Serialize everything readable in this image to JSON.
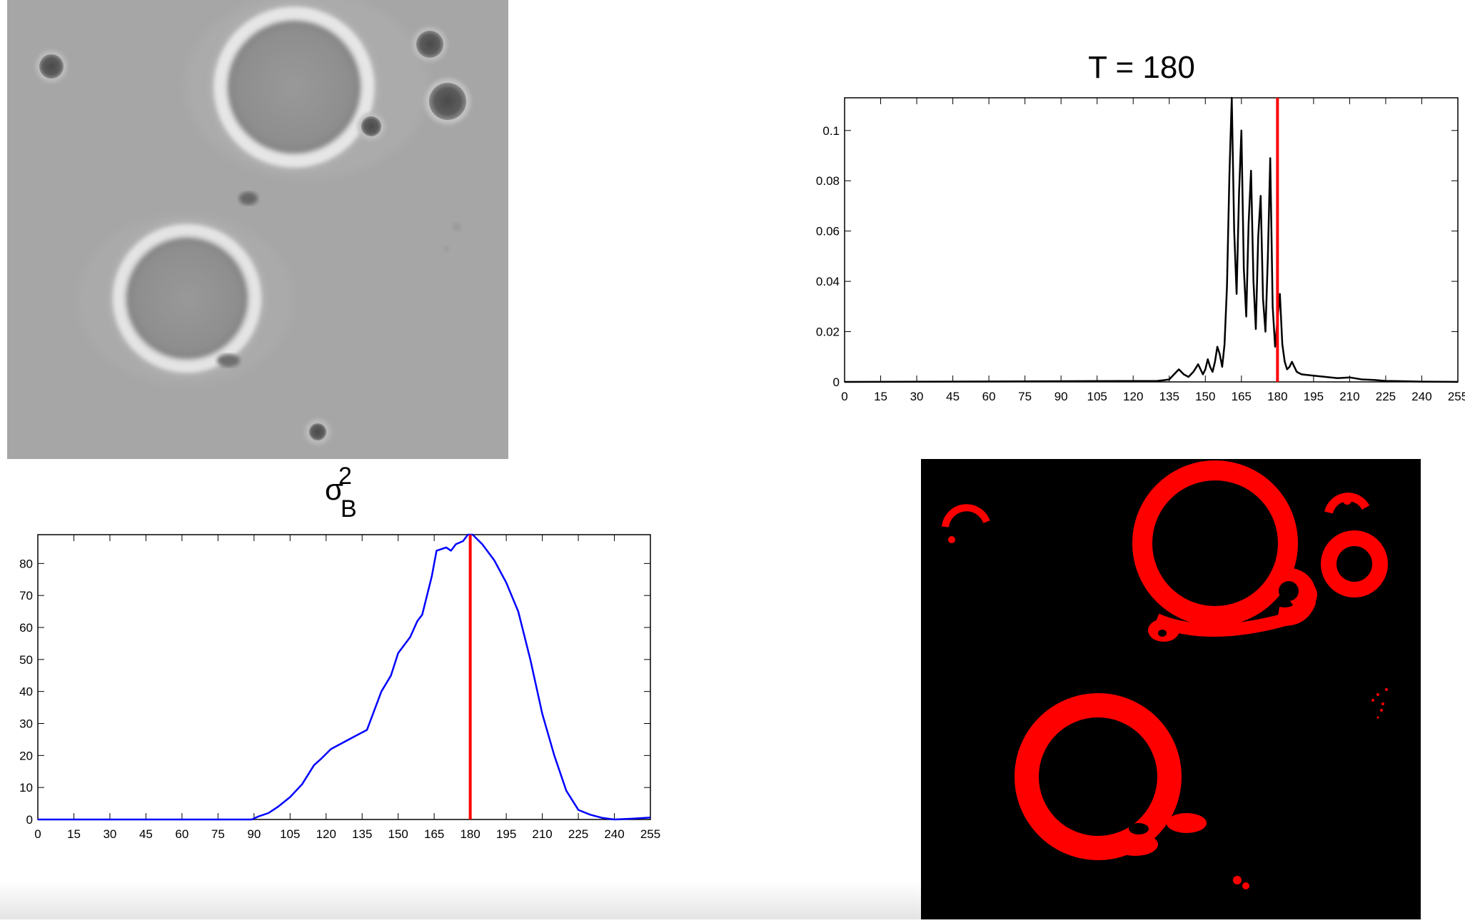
{
  "images": {
    "micrograph": {
      "icon": "phase-contrast-micrograph",
      "background": "#a6a6a6"
    },
    "segmentation": {
      "icon": "thresholded-segmentation-mask",
      "background": "#000000",
      "foreground": "#ff0000"
    }
  },
  "chart_data": [
    {
      "type": "line",
      "title": "T = 180",
      "xlabel": "",
      "ylabel": "",
      "xlim": [
        0,
        255
      ],
      "ylim": [
        0,
        0.113
      ],
      "xticks": [
        0,
        15,
        30,
        45,
        60,
        75,
        90,
        105,
        120,
        135,
        150,
        165,
        180,
        195,
        210,
        225,
        240,
        255
      ],
      "yticks": [
        0,
        0.02,
        0.04,
        0.06,
        0.08,
        0.1
      ],
      "ytick_labels": [
        "0",
        "0.02",
        "0.04",
        "0.06",
        "0.08",
        "0.1"
      ],
      "series": [
        {
          "color": "#000000",
          "x": [
            0,
            130,
            133,
            135,
            137,
            139,
            141,
            143,
            145,
            147,
            148,
            149,
            150,
            151,
            152,
            153,
            154,
            155,
            156,
            157,
            158,
            159,
            160,
            161,
            162,
            163,
            164,
            165,
            166,
            167,
            168,
            169,
            170,
            171,
            172,
            173,
            174,
            175,
            176,
            177,
            178,
            179,
            180,
            181,
            182,
            183,
            184,
            185,
            186,
            188,
            190,
            195,
            200,
            205,
            210,
            215,
            220,
            225,
            230,
            240,
            255
          ],
          "y": [
            0,
            0.0004,
            0.0007,
            0.001,
            0.003,
            0.005,
            0.003,
            0.002,
            0.004,
            0.007,
            0.005,
            0.003,
            0.005,
            0.009,
            0.006,
            0.004,
            0.008,
            0.014,
            0.011,
            0.006,
            0.015,
            0.038,
            0.082,
            0.113,
            0.06,
            0.035,
            0.075,
            0.1,
            0.045,
            0.026,
            0.063,
            0.084,
            0.04,
            0.021,
            0.058,
            0.074,
            0.033,
            0.02,
            0.05,
            0.089,
            0.03,
            0.014,
            0.025,
            0.035,
            0.015,
            0.008,
            0.005,
            0.006,
            0.008,
            0.004,
            0.003,
            0.0025,
            0.002,
            0.0015,
            0.0018,
            0.001,
            0.0008,
            0.0004,
            0.0003,
            0.0001,
            0.0
          ]
        }
      ],
      "threshold": {
        "x": 180,
        "color": "#ff0000"
      }
    },
    {
      "type": "line",
      "title": "σ",
      "title_sup": "2",
      "title_sub": "B",
      "xlabel": "",
      "ylabel": "",
      "xlim": [
        0,
        255
      ],
      "ylim": [
        0,
        89
      ],
      "xticks": [
        0,
        15,
        30,
        45,
        60,
        75,
        90,
        105,
        120,
        135,
        150,
        165,
        180,
        195,
        210,
        225,
        240,
        255
      ],
      "yticks": [
        0,
        10,
        20,
        30,
        40,
        50,
        60,
        70,
        80
      ],
      "ytick_labels": [
        "0",
        "10",
        "20",
        "30",
        "40",
        "50",
        "60",
        "70",
        "80"
      ],
      "series": [
        {
          "color": "#0000ff",
          "x": [
            0,
            89,
            92,
            96,
            100,
            105,
            110,
            115,
            118,
            122,
            127,
            132,
            137,
            140,
            143,
            147,
            150,
            155,
            158,
            160,
            164,
            166,
            170,
            172,
            174,
            177,
            179,
            181,
            185,
            190,
            195,
            200,
            205,
            210,
            215,
            220,
            225,
            230,
            235,
            240,
            248,
            255
          ],
          "y": [
            0,
            0,
            1,
            2,
            4,
            7,
            11,
            17,
            19,
            22,
            24,
            26,
            28,
            34,
            40,
            45,
            52,
            57,
            62,
            64,
            76,
            84,
            85,
            84,
            86,
            87,
            89,
            89,
            86,
            81,
            74,
            65,
            50,
            33,
            20,
            9,
            3,
            1.5,
            0.5,
            0,
            0.3,
            0.6
          ]
        }
      ],
      "threshold": {
        "x": 180,
        "color": "#ff0000"
      }
    }
  ]
}
